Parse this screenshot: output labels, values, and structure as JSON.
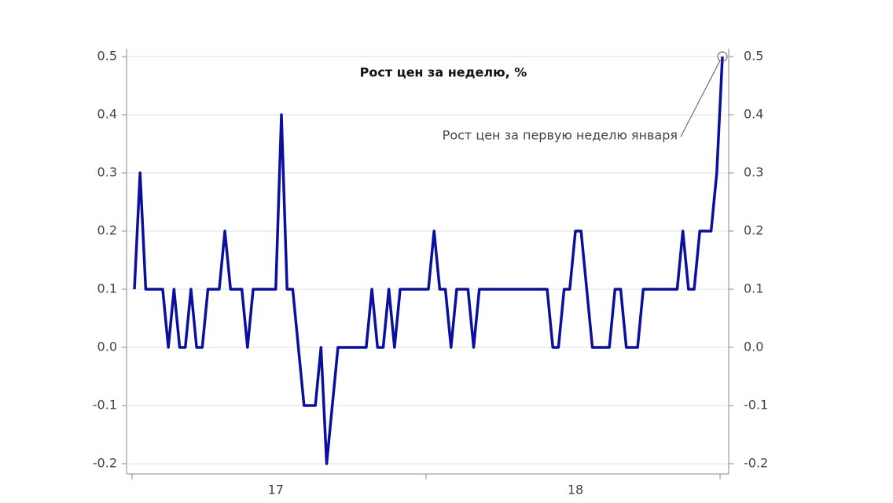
{
  "chart_data": {
    "type": "line",
    "title": "Рост цен за неделю, %",
    "annotation": "Рост цен за первую неделю января",
    "categories": [
      null,
      null,
      null,
      null,
      null,
      null,
      null,
      null,
      null,
      null,
      null,
      null,
      null,
      null,
      null,
      null,
      null,
      null,
      null,
      null,
      null,
      null,
      null,
      null,
      null,
      "17",
      null,
      null,
      null,
      null,
      null,
      null,
      null,
      null,
      null,
      null,
      null,
      null,
      null,
      null,
      null,
      null,
      null,
      null,
      null,
      null,
      null,
      null,
      null,
      null,
      null,
      null,
      null,
      null,
      null,
      null,
      null,
      null,
      null,
      null,
      null,
      null,
      null,
      null,
      null,
      null,
      null,
      null,
      null,
      null,
      null,
      null,
      null,
      null,
      null,
      null,
      null,
      null,
      "18",
      null,
      null,
      null,
      null,
      null,
      null,
      null,
      null,
      null,
      null,
      null,
      null,
      null,
      null,
      null,
      null,
      null,
      null,
      null,
      null,
      null,
      null,
      null,
      null,
      null,
      null
    ],
    "series": [
      {
        "name": "Рост цен за неделю",
        "color": "#0a0f9c",
        "values": [
          0.1,
          0.3,
          0.1,
          0.1,
          0.1,
          0.1,
          0.0,
          0.1,
          0.0,
          0.0,
          0.1,
          0.0,
          0.0,
          0.1,
          0.1,
          0.1,
          0.2,
          0.1,
          0.1,
          0.1,
          0.0,
          0.1,
          0.1,
          0.1,
          0.1,
          0.1,
          0.4,
          0.1,
          0.1,
          0.0,
          -0.1,
          -0.1,
          -0.1,
          0.0,
          -0.2,
          -0.1,
          0.0,
          0.0,
          0.0,
          0.0,
          0.0,
          0.0,
          0.1,
          0.0,
          0.0,
          0.1,
          0.0,
          0.1,
          0.1,
          0.1,
          0.1,
          0.1,
          0.1,
          0.2,
          0.1,
          0.1,
          0.0,
          0.1,
          0.1,
          0.1,
          0.0,
          0.1,
          0.1,
          0.1,
          0.1,
          0.1,
          0.1,
          0.1,
          0.1,
          0.1,
          0.1,
          0.1,
          0.1,
          0.1,
          0.0,
          0.0,
          0.1,
          0.1,
          0.2,
          0.2,
          0.1,
          0.0,
          0.0,
          0.0,
          0.0,
          0.1,
          0.1,
          0.0,
          0.0,
          0.0,
          0.1,
          0.1,
          0.1,
          0.1,
          0.1,
          0.1,
          0.1,
          0.2,
          0.1,
          0.1,
          0.2,
          0.2,
          0.2,
          0.3,
          0.5
        ]
      }
    ],
    "ylim": [
      -0.2,
      0.5
    ],
    "yticks": [
      -0.2,
      -0.1,
      {
        "value": 0,
        "label": "0.0"
      },
      0.1,
      0.2,
      0.3,
      0.4,
      0.5
    ],
    "y2lim": [
      -0.2,
      0.5
    ],
    "y2ticks": [
      -0.2,
      -0.1,
      {
        "value": 0,
        "label": "0.0"
      },
      0.1,
      0.2,
      0.3,
      0.4,
      0.5
    ],
    "grid": true
  }
}
